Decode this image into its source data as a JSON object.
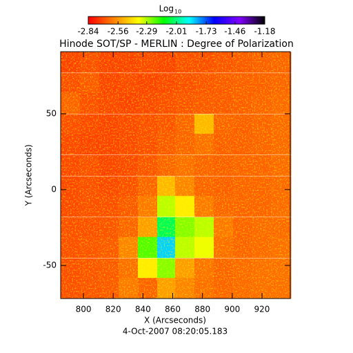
{
  "chart_data": {
    "type": "heatmap",
    "title": "Hinode SOT/SP - MERLIN : Degree of Polarization",
    "x_label": "X (Arcseconds)",
    "y_label": "Y (Arcseconds)",
    "footer": "4-Oct-2007 08:20:05.183",
    "xlim": [
      784.7,
      939
    ],
    "ylim": [
      -71.8,
      90.9
    ],
    "xticks": [
      800,
      820,
      840,
      860,
      880,
      900,
      920
    ],
    "yticks": [
      -50,
      0,
      50
    ],
    "x": [
      791,
      804,
      817,
      830,
      843,
      856,
      868,
      881,
      894,
      907,
      920,
      933
    ],
    "y": [
      84,
      70,
      57,
      43,
      30,
      16,
      2,
      -11,
      -25,
      -38,
      -52,
      -65
    ],
    "z": [
      [
        -2.72,
        -2.7,
        -2.72,
        -2.72,
        -2.71,
        -2.72,
        -2.7,
        -2.7,
        -2.69,
        -2.68,
        -2.67,
        -2.66
      ],
      [
        -2.7,
        -2.68,
        -2.72,
        -2.71,
        -2.72,
        -2.71,
        -2.7,
        -2.69,
        -2.68,
        -2.67,
        -2.67,
        -2.66
      ],
      [
        -2.66,
        -2.7,
        -2.71,
        -2.72,
        -2.71,
        -2.7,
        -2.69,
        -2.68,
        -2.68,
        -2.67,
        -2.66,
        -2.65
      ],
      [
        -2.7,
        -2.71,
        -2.72,
        -2.71,
        -2.7,
        -2.69,
        -2.66,
        -2.5,
        -2.66,
        -2.67,
        -2.66,
        -2.65
      ],
      [
        -2.71,
        -2.72,
        -2.72,
        -2.71,
        -2.7,
        -2.68,
        -2.66,
        -2.64,
        -2.67,
        -2.67,
        -2.66,
        -2.65
      ],
      [
        -2.71,
        -2.7,
        -2.72,
        -2.71,
        -2.69,
        -2.66,
        -2.64,
        -2.66,
        -2.67,
        -2.66,
        -2.66,
        -2.65
      ],
      [
        -2.71,
        -2.7,
        -2.71,
        -2.7,
        -2.66,
        -2.5,
        -2.6,
        -2.66,
        -2.67,
        -2.66,
        -2.66,
        -2.65
      ],
      [
        -2.71,
        -2.7,
        -2.7,
        -2.68,
        -2.62,
        -2.3,
        -2.4,
        -2.62,
        -2.66,
        -2.66,
        -2.66,
        -2.65
      ],
      [
        -2.7,
        -2.7,
        -2.69,
        -2.66,
        -2.55,
        -2.05,
        -2.25,
        -2.3,
        -2.62,
        -2.66,
        -2.65,
        -2.65
      ],
      [
        -2.7,
        -2.69,
        -2.68,
        -2.6,
        -2.2,
        -1.85,
        -2.3,
        -2.35,
        -2.64,
        -2.66,
        -2.65,
        -2.64
      ],
      [
        -2.7,
        -2.69,
        -2.68,
        -2.64,
        -2.4,
        -2.25,
        -2.55,
        -2.63,
        -2.66,
        -2.65,
        -2.64,
        -2.64
      ],
      [
        -2.7,
        -2.69,
        -2.68,
        -2.62,
        -2.66,
        -2.55,
        -2.6,
        -2.64,
        -2.66,
        -2.65,
        -2.64,
        -2.64
      ]
    ],
    "colorbar": {
      "label": "Log",
      "label_sub": "10",
      "range": [
        -2.84,
        -1.18
      ],
      "ticks": [
        -2.84,
        -2.56,
        -2.29,
        -2.01,
        -1.73,
        -1.46,
        -1.18
      ],
      "colors": [
        "#ff0000",
        "#ff8000",
        "#ffff00",
        "#00ff00",
        "#00ffff",
        "#0000ff",
        "#8000ff",
        "#000000"
      ]
    }
  }
}
